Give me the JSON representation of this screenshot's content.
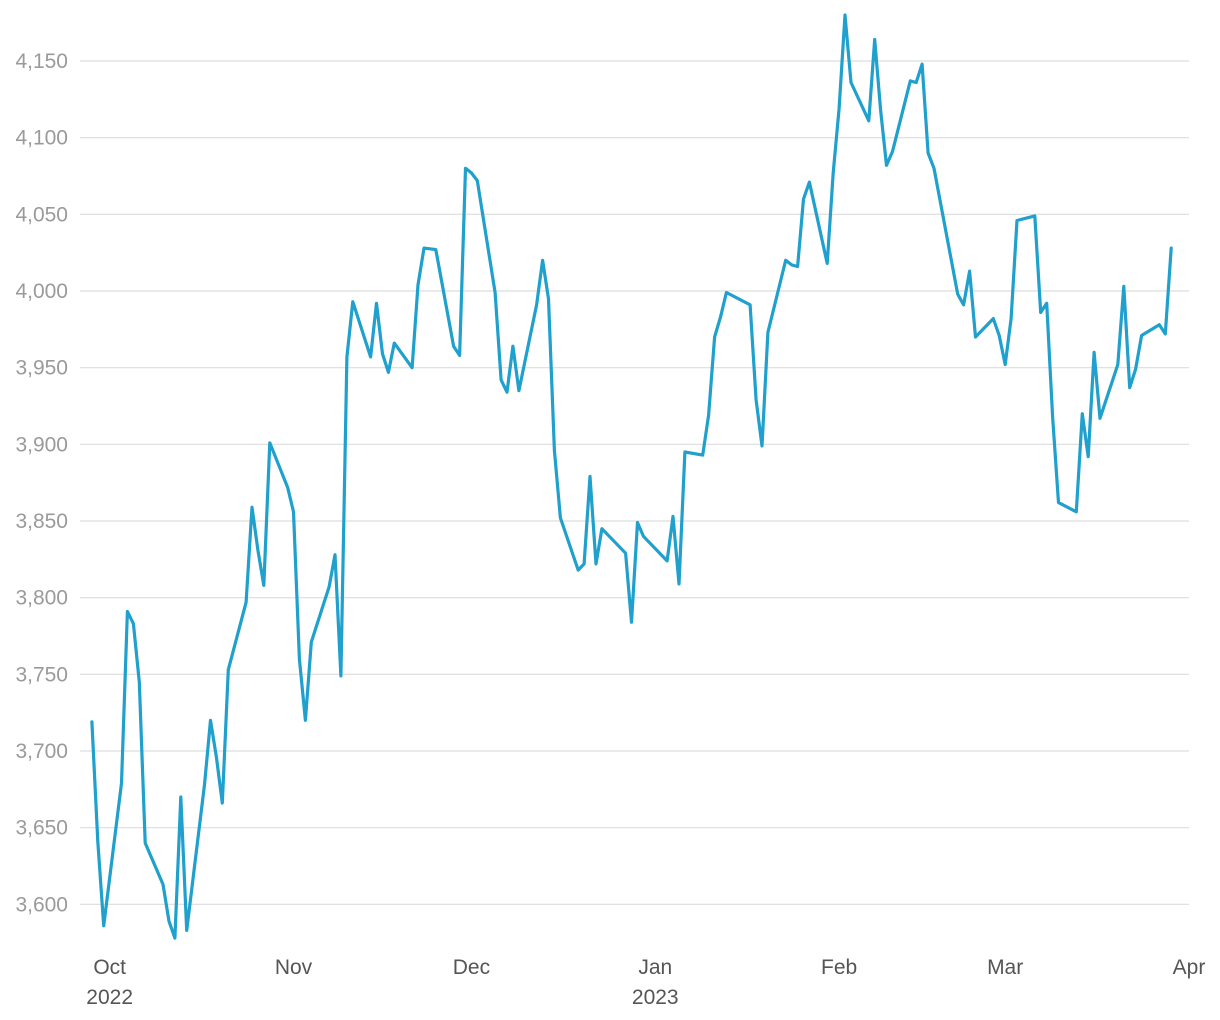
{
  "chart_data": {
    "type": "line",
    "title": "",
    "xlabel": "",
    "ylabel": "",
    "grid": true,
    "legend": "none",
    "ylim": [
      3580,
      4180
    ],
    "xlim": [
      "2022-09-26",
      "2023-04-01"
    ],
    "y_ticks": [
      {
        "value": 3600,
        "label": "3,600"
      },
      {
        "value": 3650,
        "label": "3,650"
      },
      {
        "value": 3700,
        "label": "3,700"
      },
      {
        "value": 3750,
        "label": "3,750"
      },
      {
        "value": 3800,
        "label": "3,800"
      },
      {
        "value": 3850,
        "label": "3,850"
      },
      {
        "value": 3900,
        "label": "3,900"
      },
      {
        "value": 3950,
        "label": "3,950"
      },
      {
        "value": 4000,
        "label": "4,000"
      },
      {
        "value": 4050,
        "label": "4,050"
      },
      {
        "value": 4100,
        "label": "4,100"
      },
      {
        "value": 4150,
        "label": "4,150"
      }
    ],
    "x_ticks": [
      {
        "date": "2022-10-01",
        "label": "Oct",
        "sublabel": "2022"
      },
      {
        "date": "2022-11-01",
        "label": "Nov",
        "sublabel": ""
      },
      {
        "date": "2022-12-01",
        "label": "Dec",
        "sublabel": ""
      },
      {
        "date": "2023-01-01",
        "label": "Jan",
        "sublabel": "2023"
      },
      {
        "date": "2023-02-01",
        "label": "Feb",
        "sublabel": ""
      },
      {
        "date": "2023-03-01",
        "label": "Mar",
        "sublabel": ""
      },
      {
        "date": "2023-04-01",
        "label": "Apr",
        "sublabel": ""
      }
    ],
    "series": [
      {
        "color": "#1fa0cd",
        "x": [
          "2022-09-28",
          "2022-09-29",
          "2022-09-30",
          "2022-10-03",
          "2022-10-04",
          "2022-10-05",
          "2022-10-06",
          "2022-10-07",
          "2022-10-10",
          "2022-10-11",
          "2022-10-12",
          "2022-10-13",
          "2022-10-14",
          "2022-10-17",
          "2022-10-18",
          "2022-10-19",
          "2022-10-20",
          "2022-10-21",
          "2022-10-24",
          "2022-10-25",
          "2022-10-26",
          "2022-10-27",
          "2022-10-28",
          "2022-10-31",
          "2022-11-01",
          "2022-11-02",
          "2022-11-03",
          "2022-11-04",
          "2022-11-07",
          "2022-11-08",
          "2022-11-09",
          "2022-11-10",
          "2022-11-11",
          "2022-11-14",
          "2022-11-15",
          "2022-11-16",
          "2022-11-17",
          "2022-11-18",
          "2022-11-21",
          "2022-11-22",
          "2022-11-23",
          "2022-11-25",
          "2022-11-28",
          "2022-11-29",
          "2022-11-30",
          "2022-12-01",
          "2022-12-02",
          "2022-12-05",
          "2022-12-06",
          "2022-12-07",
          "2022-12-08",
          "2022-12-09",
          "2022-12-12",
          "2022-12-13",
          "2022-12-14",
          "2022-12-15",
          "2022-12-16",
          "2022-12-19",
          "2022-12-20",
          "2022-12-21",
          "2022-12-22",
          "2022-12-23",
          "2022-12-27",
          "2022-12-28",
          "2022-12-29",
          "2022-12-30",
          "2023-01-03",
          "2023-01-04",
          "2023-01-05",
          "2023-01-06",
          "2023-01-09",
          "2023-01-10",
          "2023-01-11",
          "2023-01-12",
          "2023-01-13",
          "2023-01-17",
          "2023-01-18",
          "2023-01-19",
          "2023-01-20",
          "2023-01-23",
          "2023-01-24",
          "2023-01-25",
          "2023-01-26",
          "2023-01-27",
          "2023-01-30",
          "2023-01-31",
          "2023-02-01",
          "2023-02-02",
          "2023-02-03",
          "2023-02-06",
          "2023-02-07",
          "2023-02-08",
          "2023-02-09",
          "2023-02-10",
          "2023-02-13",
          "2023-02-14",
          "2023-02-15",
          "2023-02-16",
          "2023-02-17",
          "2023-02-21",
          "2023-02-22",
          "2023-02-23",
          "2023-02-24",
          "2023-02-27",
          "2023-02-28",
          "2023-03-01",
          "2023-03-02",
          "2023-03-03",
          "2023-03-06",
          "2023-03-07",
          "2023-03-08",
          "2023-03-09",
          "2023-03-10",
          "2023-03-13",
          "2023-03-14",
          "2023-03-15",
          "2023-03-16",
          "2023-03-17",
          "2023-03-20",
          "2023-03-21",
          "2023-03-22",
          "2023-03-23",
          "2023-03-24",
          "2023-03-27",
          "2023-03-28",
          "2023-03-29"
        ],
        "values": [
          3719,
          3641,
          3586,
          3679,
          3791,
          3783,
          3745,
          3640,
          3613,
          3589,
          3578,
          3670,
          3583,
          3678,
          3720,
          3696,
          3666,
          3753,
          3797,
          3859,
          3831,
          3808,
          3901,
          3872,
          3856,
          3760,
          3720,
          3771,
          3807,
          3828,
          3749,
          3957,
          3993,
          3957,
          3992,
          3959,
          3947,
          3966,
          3950,
          4004,
          4028,
          4027,
          3964,
          3958,
          4080,
          4077,
          4072,
          3999,
          3942,
          3934,
          3964,
          3935,
          3991,
          4020,
          3995,
          3896,
          3852,
          3818,
          3822,
          3879,
          3822,
          3845,
          3829,
          3784,
          3849,
          3840,
          3824,
          3853,
          3809,
          3895,
          3893,
          3919,
          3970,
          3983,
          3999,
          3991,
          3929,
          3899,
          3973,
          4020,
          4017,
          4016,
          4060,
          4071,
          4018,
          4077,
          4119,
          4180,
          4136,
          4111,
          4164,
          4118,
          4082,
          4091,
          4137,
          4136,
          4148,
          4090,
          4080,
          3998,
          3991,
          4013,
          3970,
          3982,
          3971,
          3952,
          3982,
          4046,
          4049,
          3986,
          3992,
          3918,
          3862,
          3856,
          3920,
          3892,
          3960,
          3917,
          3952,
          4003,
          3937,
          3949,
          3971,
          3978,
          3972,
          4028
        ]
      }
    ]
  }
}
